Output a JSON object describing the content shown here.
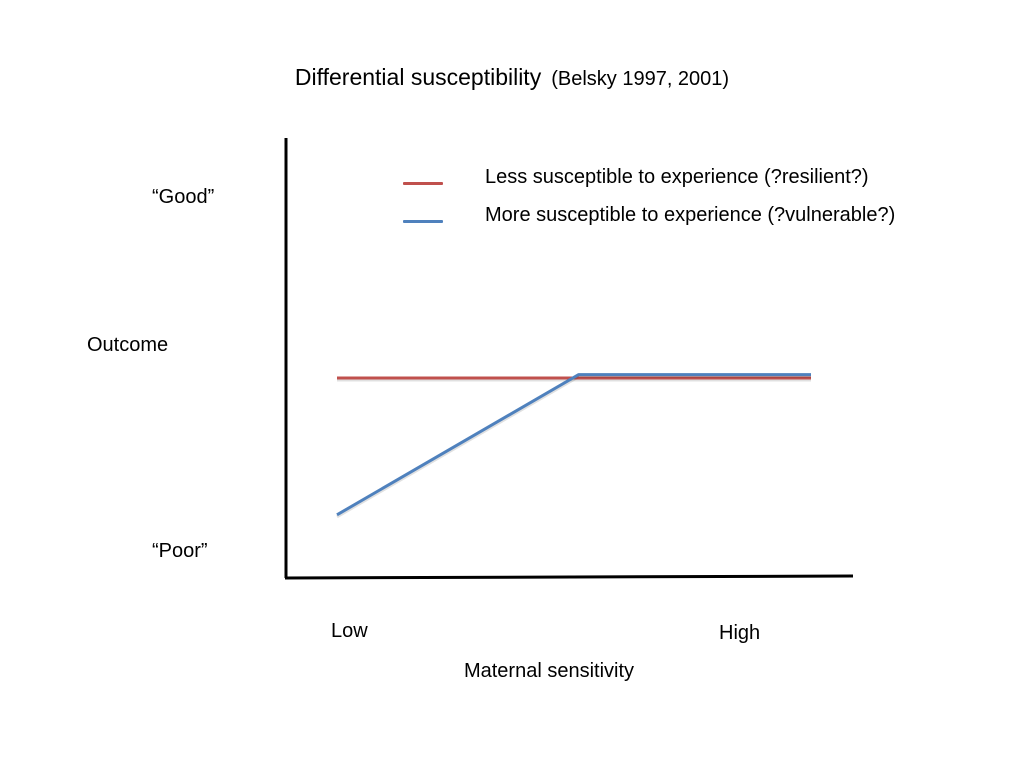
{
  "slide": {
    "title": "Differential susceptibility",
    "subtitle": "(Belsky 1997, 2001)"
  },
  "chart_data": {
    "type": "line",
    "title": "Differential susceptibility",
    "subtitle": "(Belsky 1997, 2001)",
    "xlabel": "Maternal sensitivity",
    "ylabel": "Outcome",
    "x_tick_labels": [
      "Low",
      "High"
    ],
    "y_tick_labels": [
      "“Poor”",
      "“Good”"
    ],
    "x_range_label": [
      "Low",
      "High"
    ],
    "y_range_label": [
      "“Poor”",
      "“Good”"
    ],
    "xlim": [
      0,
      1
    ],
    "ylim": [
      0,
      1
    ],
    "grid": false,
    "legend_position": "top-right",
    "series": [
      {
        "name": "Less susceptible to experience (?resilient?)",
        "color": "#c0504d",
        "x": [
          0.0,
          0.51,
          1.0
        ],
        "y": [
          0.5,
          0.5,
          0.5
        ]
      },
      {
        "name": "More susceptible to experience (?vulnerable?)",
        "color": "#4f81bd",
        "x": [
          0.0,
          0.51,
          1.0
        ],
        "y": [
          0.1,
          0.51,
          0.51
        ]
      }
    ]
  }
}
